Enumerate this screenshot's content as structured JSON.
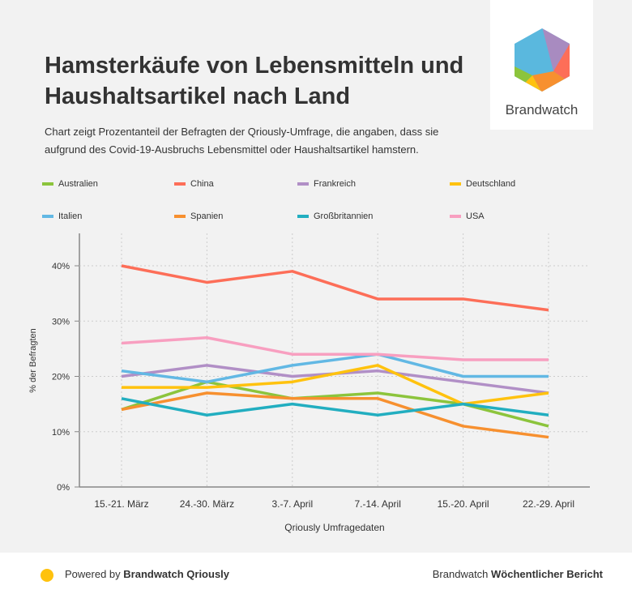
{
  "title": "Hamsterkäufe von Lebensmitteln und Haushaltsartikel nach Land",
  "subtitle": "Chart zeigt Prozentanteil der Befragten der Qriously-Umfrage, die angaben, dass sie aufgrund des Covid-19-Ausbruchs Lebensmittel oder Haushaltsartikel hamstern.",
  "logo": {
    "text": "Brandwatch"
  },
  "footer": {
    "powered_prefix": "Powered by ",
    "powered_brand": "Brandwatch Qriously",
    "report_prefix": "Brandwatch ",
    "report_bold": "Wöchentlicher Bericht"
  },
  "chart_data": {
    "type": "line",
    "xlabel": "Qriously Umfragedaten",
    "ylabel": "% der Befragten",
    "ylim": [
      0,
      40
    ],
    "yticks": [
      "0%",
      "10%",
      "20%",
      "30%",
      "40%"
    ],
    "categories": [
      "15.-21. März",
      "24.-30. März",
      "3.-7. April",
      "7.-14. April",
      "15.-20. April",
      "22.-29. April"
    ],
    "grid": true,
    "legend": "top",
    "series": [
      {
        "name": "Australien",
        "color": "#8cc43c",
        "values": [
          14,
          19,
          16,
          17,
          15,
          11
        ]
      },
      {
        "name": "China",
        "color": "#fd6e58",
        "values": [
          40,
          37,
          39,
          34,
          34,
          32
        ]
      },
      {
        "name": "Frankreich",
        "color": "#b18fc6",
        "values": [
          20,
          22,
          20,
          21,
          19,
          17
        ]
      },
      {
        "name": "Deutschland",
        "color": "#ffc20e",
        "values": [
          18,
          18,
          19,
          22,
          15,
          17
        ]
      },
      {
        "name": "Italien",
        "color": "#62b8e4",
        "values": [
          21,
          19,
          22,
          24,
          20,
          20
        ]
      },
      {
        "name": "Spanien",
        "color": "#f7902f",
        "values": [
          14,
          17,
          16,
          16,
          11,
          9
        ]
      },
      {
        "name": "Großbritannien",
        "color": "#22aec0",
        "values": [
          16,
          13,
          15,
          13,
          15,
          13
        ]
      },
      {
        "name": "USA",
        "color": "#f89fc0",
        "values": [
          26,
          27,
          24,
          24,
          23,
          23
        ]
      }
    ]
  }
}
